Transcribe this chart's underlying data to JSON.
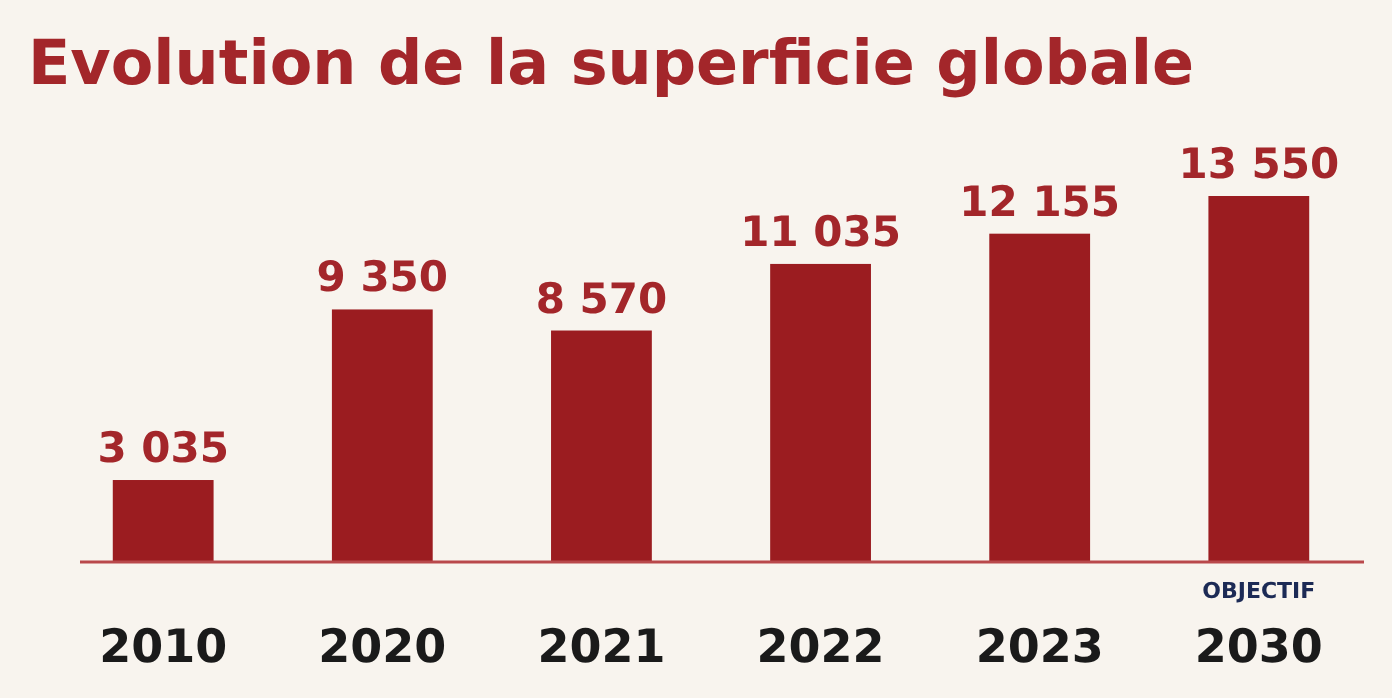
{
  "chart_data": {
    "type": "bar",
    "title": "Evolution de la superficie globale",
    "categories": [
      "2010",
      "2020",
      "2021",
      "2022",
      "2023",
      "2030"
    ],
    "values": [
      3035,
      9350,
      8570,
      11035,
      12155,
      13550
    ],
    "value_labels": [
      "3 035",
      "9 350",
      "8 570",
      "11 035",
      "12 155",
      "13 550"
    ],
    "color": "#9b1c20",
    "annotations": [
      "OBJECTIF"
    ]
  }
}
